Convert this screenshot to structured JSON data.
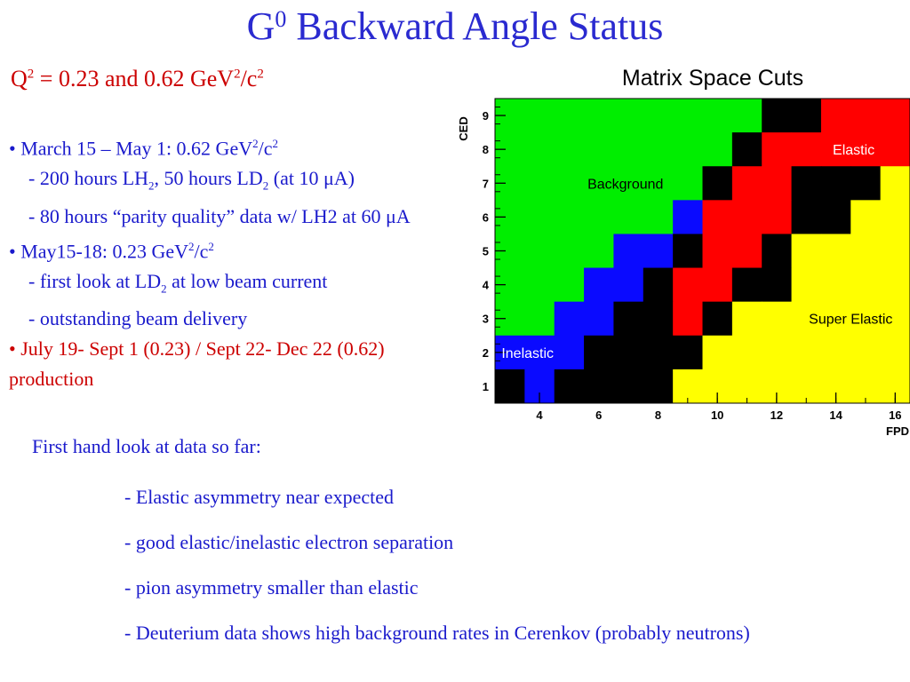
{
  "title": {
    "main": "G",
    "sup": "0",
    "rest": " Backward Angle Status"
  },
  "subtitle": {
    "q": "Q",
    "q_sup": "2",
    "text": " = 0.23 and 0.62 GeV",
    "gev_sup": "2",
    "slash": "/c",
    "c_sup": "2"
  },
  "bullets": {
    "b1_prefix": "• March 15 – May 1: 0.62 GeV",
    "b1_sup": "2",
    "b1_mid": "/c",
    "b1_sup2": "2",
    "b1_l1a": "- 200 hours LH",
    "b1_l1_sub1": "2",
    "b1_l1b": ", 50 hours LD",
    "b1_l1_sub2": "2",
    "b1_l1c": " (at 10 μA)",
    "b1_l2": "- 80 hours “parity quality” data w/ LH2 at 60 μA",
    "b2_prefix": "• May15-18: 0.23 GeV",
    "b2_sup": "2",
    "b2_mid": "/c",
    "b2_sup2": "2",
    "b2_l1a": "- first look at LD",
    "b2_l1_sub": "2",
    "b2_l1b": " at low beam current",
    "b2_l2": "- outstanding beam delivery",
    "b3": "• July 19- Sept 1 (0.23) / Sept 22- Dec 22 (0.62) production"
  },
  "lower": {
    "head": "First hand look at data so far:",
    "items": [
      "- Elastic asymmetry near expected",
      "- good elastic/inelastic electron separation",
      "- pion asymmetry smaller than elastic",
      "- Deuterium data shows high background rates in Cerenkov (probably neutrons)"
    ]
  },
  "chart_data": {
    "type": "heatmap",
    "title": "Matrix Space Cuts",
    "xlabel": "FPD",
    "ylabel": "CED",
    "x_ticks": [
      "4",
      "6",
      "8",
      "10",
      "12",
      "14",
      "16"
    ],
    "y_ticks": [
      "1",
      "2",
      "3",
      "4",
      "5",
      "6",
      "7",
      "8",
      "9"
    ],
    "xlim": [
      2.5,
      16.5
    ],
    "ylim": [
      0.5,
      9.5
    ],
    "region_labels": [
      "Background",
      "Elastic",
      "Inelastic",
      "Super Elastic"
    ],
    "colors": {
      "G": "#00ee00",
      "B": "#0a0aff",
      "K": "#000000",
      "R": "#ff0000",
      "Y": "#ffff00"
    },
    "rows_top_to_bottom": [
      "GGGGGGGGGKKRRR",
      "GGGGGGGGKRRRRR",
      "GGGGGGGKRRKKKY",
      "GGGGGGBRRRKKYY",
      "GGGGBBKRRKYYYY",
      "GGGBBKRRKKYYYY",
      "GGBBKKRKYYYYYY",
      "BBBKKKKYYYYYYY",
      "KBKKKKYYYYYYYY"
    ]
  }
}
